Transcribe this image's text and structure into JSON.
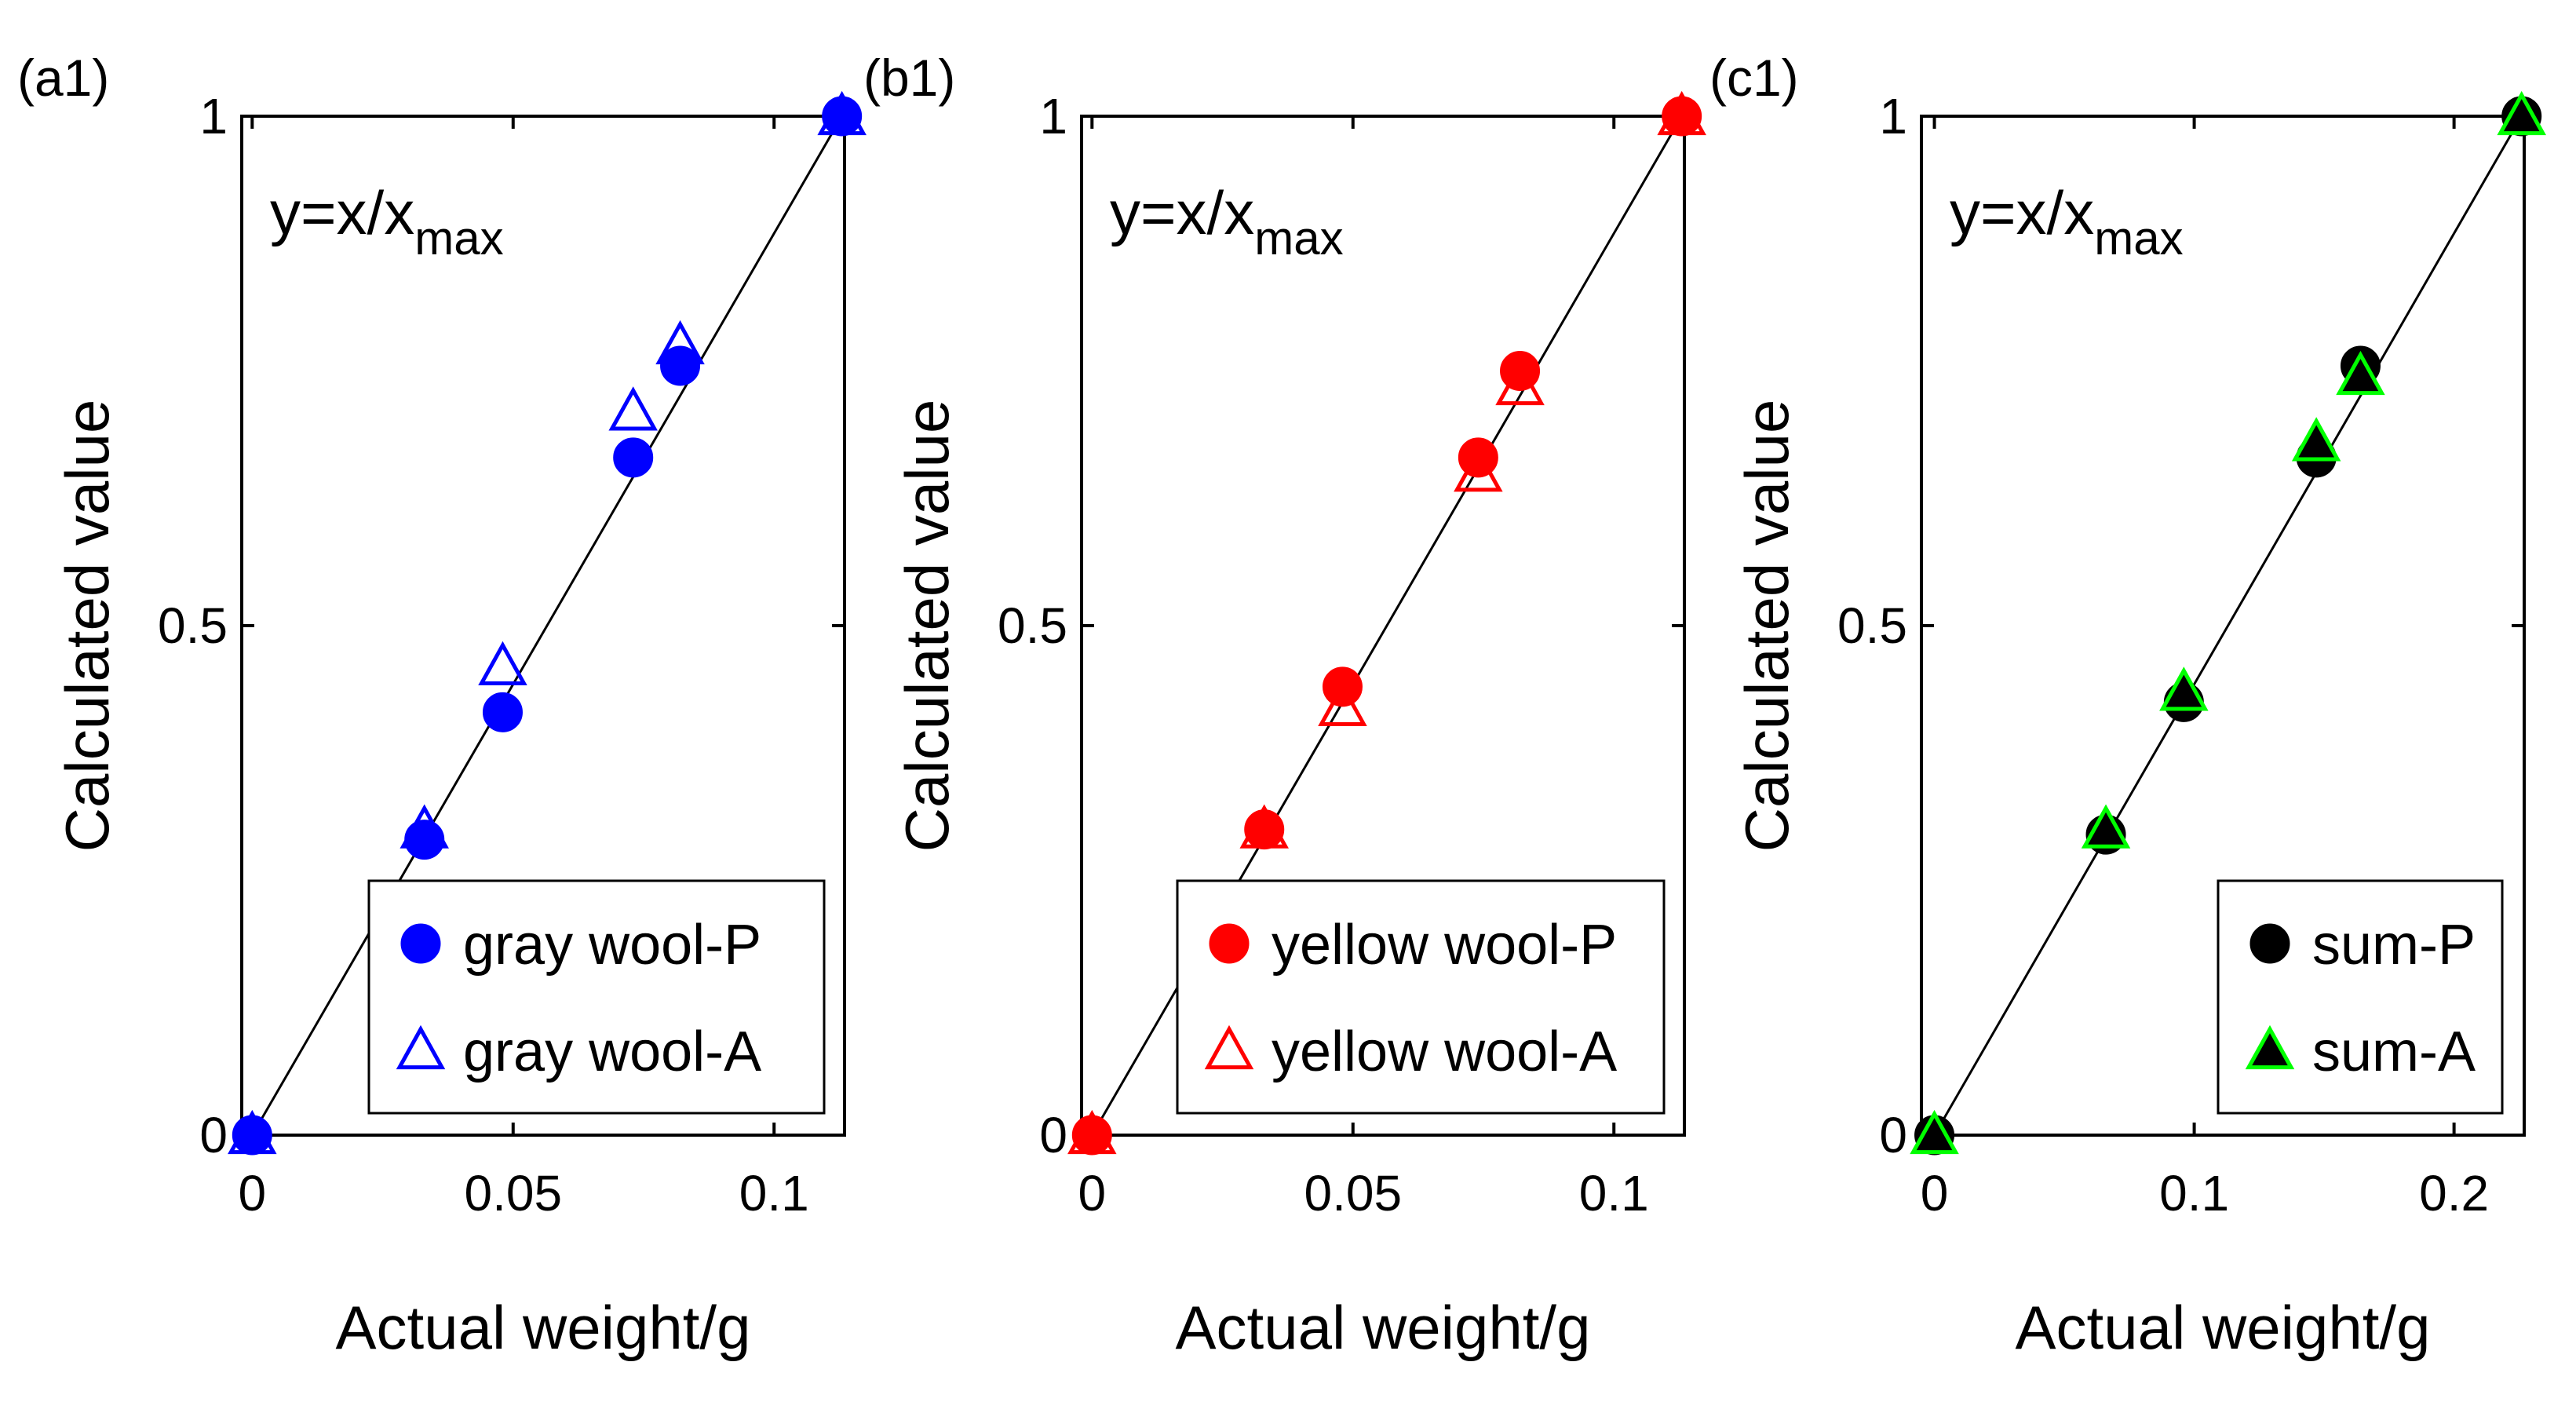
{
  "colors": {
    "gray_wool": "#0000FF",
    "yellow_wool": "#FF0000",
    "sum_P": "#000000",
    "sum_A": "#00FF00",
    "fit_line": "#000000"
  },
  "chart_data": [
    {
      "type": "scatter",
      "panel_label": "(a1)",
      "annotation_main": "y=x/x",
      "annotation_sub": "max",
      "xlabel": "Actual weight/g",
      "ylabel": "Calculated value",
      "xlim": [
        -0.002,
        0.1135
      ],
      "ylim": [
        0,
        1
      ],
      "xticks": [
        0,
        0.05,
        0.1
      ],
      "xtick_labels": [
        "0",
        "0.05",
        "0.1"
      ],
      "yticks": [
        0,
        0.5,
        1
      ],
      "ytick_labels": [
        "0",
        "0.5",
        "1"
      ],
      "fit_line": {
        "x": [
          0,
          0.113
        ],
        "y": [
          0,
          1
        ]
      },
      "legend_position": "bottom-right",
      "series": [
        {
          "name": "gray wool-P",
          "marker": "filled-circle",
          "color": "#0000FF",
          "x": [
            0,
            0.033,
            0.048,
            0.073,
            0.082,
            0.113
          ],
          "y": [
            0,
            0.29,
            0.415,
            0.665,
            0.755,
            1
          ]
        },
        {
          "name": "gray wool-A",
          "marker": "open-triangle",
          "color": "#0000FF",
          "x": [
            0,
            0.033,
            0.048,
            0.073,
            0.082,
            0.113
          ],
          "y": [
            0,
            0.3,
            0.46,
            0.71,
            0.775,
            1
          ]
        }
      ]
    },
    {
      "type": "scatter",
      "panel_label": "(b1)",
      "annotation_main": "y=x/x",
      "annotation_sub": "max",
      "xlabel": "Actual weight/g",
      "ylabel": "Calculated value",
      "xlim": [
        -0.002,
        0.1135
      ],
      "ylim": [
        0,
        1
      ],
      "xticks": [
        0,
        0.05,
        0.1
      ],
      "xtick_labels": [
        "0",
        "0.05",
        "0.1"
      ],
      "yticks": [
        0,
        0.5,
        1
      ],
      "ytick_labels": [
        "0",
        "0.5",
        "1"
      ],
      "fit_line": {
        "x": [
          0,
          0.113
        ],
        "y": [
          0,
          1
        ]
      },
      "legend_position": "bottom-right",
      "series": [
        {
          "name": "yellow wool-P",
          "marker": "filled-circle",
          "color": "#FF0000",
          "x": [
            0,
            0.033,
            0.048,
            0.074,
            0.082,
            0.113
          ],
          "y": [
            0,
            0.3,
            0.44,
            0.665,
            0.75,
            1
          ]
        },
        {
          "name": "yellow wool-A",
          "marker": "open-triangle",
          "color": "#FF0000",
          "x": [
            0,
            0.033,
            0.048,
            0.074,
            0.082,
            0.113
          ],
          "y": [
            0,
            0.3,
            0.42,
            0.65,
            0.735,
            1
          ]
        }
      ]
    },
    {
      "type": "scatter",
      "panel_label": "(c1)",
      "annotation_main": "y=x/x",
      "annotation_sub": "max",
      "xlabel": "Actual weight/g",
      "ylabel": "Calculated value",
      "xlim": [
        -0.005,
        0.227
      ],
      "ylim": [
        0,
        1
      ],
      "xticks": [
        0,
        0.1,
        0.2
      ],
      "xtick_labels": [
        "0",
        "0.1",
        "0.2"
      ],
      "yticks": [
        0,
        0.5,
        1
      ],
      "ytick_labels": [
        "0",
        "0.5",
        "1"
      ],
      "fit_line": {
        "x": [
          0,
          0.226
        ],
        "y": [
          0,
          1
        ]
      },
      "legend_position": "bottom-right",
      "series": [
        {
          "name": "sum-P",
          "marker": "filled-circle",
          "color": "#000000",
          "x": [
            0,
            0.066,
            0.096,
            0.147,
            0.164,
            0.226
          ],
          "y": [
            0,
            0.295,
            0.425,
            0.665,
            0.755,
            1
          ]
        },
        {
          "name": "sum-A",
          "marker": "open-triangle-filled-black",
          "color": "#00FF00",
          "x": [
            0,
            0.066,
            0.096,
            0.147,
            0.164,
            0.226
          ],
          "y": [
            0,
            0.3,
            0.435,
            0.68,
            0.745,
            1
          ]
        }
      ]
    }
  ]
}
